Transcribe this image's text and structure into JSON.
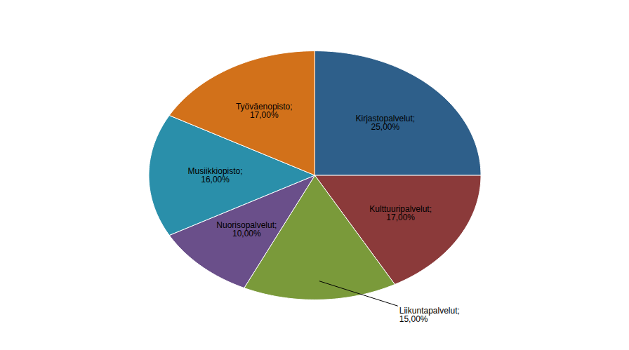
{
  "chart_data": {
    "type": "pie",
    "categories": [
      "Kirjastopalvelut",
      "Kulttuuripalvelut",
      "Liikuntapalvelut",
      "Nuorisopalvelut",
      "Musiikkiopisto",
      "Työväenopisto"
    ],
    "values": [
      25.0,
      17.0,
      15.0,
      10.0,
      16.0,
      17.0
    ],
    "value_labels": [
      "Kirjastopalvelut;\n25,00%",
      "Kulttuuripalvelut;\n17,00%",
      "Liikuntapalvelut;\n15,00%",
      "Nuorisopalvelut;\n10,00%",
      "Musiikkiopisto;\n16,00%",
      "Työväenopisto;\n17,00%"
    ],
    "colors": [
      "#2E5F8A",
      "#8B3A3A",
      "#7A9A3A",
      "#6A4F8A",
      "#2A8FAA",
      "#D2711A"
    ],
    "data_labels": true
  }
}
